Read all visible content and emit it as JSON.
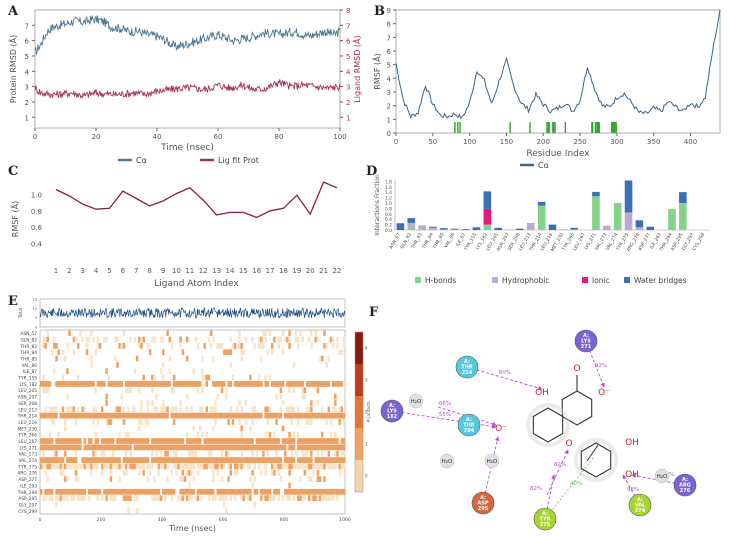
{
  "panels": {
    "a": "A",
    "b": "B",
    "c": "C",
    "d": "D",
    "e": "E",
    "f": "F"
  },
  "colors": {
    "protein": "#4f7692",
    "ligand": "#a3345d",
    "rmsf": "#3f6480",
    "rmsf_c": "#8b1e3f",
    "hbond": "#84d38a",
    "hydrophobic": "#bcaad6",
    "ionic": "#e8177d",
    "water": "#3b6fb6",
    "contact_bar": "#1f4e85",
    "heat_low": "#f9e3c9",
    "heat_mid": "#f0a060",
    "heat_high": "#8b1a10"
  },
  "chart_data": [
    {
      "type": "line",
      "panel": "A",
      "xlabel": "Time (nsec)",
      "ylabel": "Protein RMSD (Å)",
      "ylabel2": "Ligand RMSD (Å)",
      "xlim": [
        0,
        100
      ],
      "ylim": [
        0.3,
        8
      ],
      "y2lim": [
        0.3,
        8
      ],
      "xticks": [
        "0",
        "20",
        "40",
        "60",
        "80",
        "100"
      ],
      "yticks": [
        "1",
        "2",
        "3",
        "4",
        "5",
        "6",
        "7"
      ],
      "y2ticks": [
        "1",
        "2",
        "3",
        "4",
        "5",
        "6",
        "7",
        "8"
      ],
      "legend": [
        "Cα",
        "Lig fit Prot"
      ],
      "series": [
        {
          "name": "Cα",
          "x": [
            0,
            2,
            4,
            6,
            8,
            10,
            13,
            16,
            19,
            22,
            25,
            28,
            31,
            34,
            37,
            40,
            43,
            46,
            50,
            55,
            60,
            65,
            70,
            75,
            80,
            85,
            90,
            95,
            98,
            100
          ],
          "values": [
            5.2,
            5.8,
            6.6,
            6.9,
            7.0,
            7.1,
            7.3,
            7.2,
            7.4,
            7.3,
            6.9,
            6.8,
            6.6,
            6.6,
            6.4,
            6.3,
            6.0,
            5.6,
            5.8,
            6.1,
            6.4,
            6.0,
            6.2,
            6.5,
            6.4,
            6.6,
            6.3,
            6.6,
            6.4,
            6.6
          ]
        },
        {
          "name": "Lig fit Prot",
          "x": [
            0,
            2,
            5,
            8,
            12,
            16,
            20,
            24,
            28,
            32,
            36,
            40,
            44,
            48,
            52,
            56,
            60,
            64,
            68,
            72,
            76,
            80,
            84,
            88,
            92,
            96,
            100
          ],
          "values": [
            2.9,
            2.6,
            2.5,
            2.5,
            2.6,
            2.4,
            2.6,
            2.5,
            2.5,
            2.6,
            2.5,
            2.7,
            2.8,
            2.9,
            2.9,
            2.8,
            3.1,
            2.9,
            3.1,
            2.8,
            2.9,
            3.3,
            3.0,
            3.1,
            3.0,
            2.9,
            3.0
          ]
        }
      ]
    },
    {
      "type": "line",
      "panel": "B",
      "xlabel": "Residue Index",
      "ylabel": "RMSF (Å)",
      "xlim": [
        0,
        440
      ],
      "ylim": [
        0,
        9
      ],
      "xticks": [
        "0",
        "50",
        "100",
        "150",
        "200",
        "250",
        "300",
        "350",
        "400"
      ],
      "yticks": [
        "0",
        "1",
        "2",
        "3",
        "4",
        "5",
        "6",
        "7",
        "8",
        "9"
      ],
      "legend": [
        "Cα"
      ],
      "x": [
        0,
        10,
        20,
        30,
        40,
        50,
        60,
        70,
        80,
        90,
        100,
        110,
        120,
        130,
        140,
        150,
        160,
        170,
        180,
        190,
        200,
        210,
        220,
        230,
        240,
        250,
        260,
        270,
        280,
        290,
        300,
        310,
        320,
        330,
        340,
        350,
        360,
        370,
        380,
        390,
        400,
        410,
        420,
        430,
        440
      ],
      "values": [
        5.1,
        2.4,
        1.2,
        1.5,
        3.5,
        2.1,
        1.3,
        1.2,
        1.4,
        1.1,
        2.2,
        4.6,
        3.8,
        2.1,
        3.8,
        5.3,
        3.4,
        2.2,
        1.7,
        2.8,
        2.1,
        1.6,
        1.8,
        2.2,
        1.6,
        2.4,
        4.9,
        3.2,
        2.0,
        1.9,
        2.6,
        2.9,
        2.2,
        1.5,
        1.4,
        1.8,
        1.6,
        2.3,
        1.9,
        1.6,
        2.2,
        1.9,
        2.6,
        6.0,
        9.0
      ],
      "contact_residues": [
        80,
        84,
        87,
        155,
        182,
        205,
        207,
        208,
        213,
        214,
        216,
        230,
        266,
        267,
        271,
        273,
        274,
        275,
        276,
        293,
        294,
        295,
        297,
        299
      ]
    },
    {
      "type": "line",
      "panel": "C",
      "xlabel": "Ligand Atom Index",
      "ylabel": "RMSF (Å)",
      "ylim": [
        0.2,
        1.2
      ],
      "yticks": [
        "0.4",
        "0.6",
        "0.8",
        "1.0"
      ],
      "categories": [
        "1",
        "2",
        "3",
        "4",
        "5",
        "6",
        "7",
        "8",
        "9",
        "10",
        "11",
        "12",
        "13",
        "14",
        "15",
        "16",
        "17",
        "18",
        "19",
        "20",
        "21",
        "22"
      ],
      "values": [
        1.06,
        0.98,
        0.88,
        0.82,
        0.83,
        1.04,
        0.95,
        0.86,
        0.92,
        1.01,
        1.08,
        0.93,
        0.75,
        0.78,
        0.78,
        0.72,
        0.8,
        0.83,
        0.99,
        0.76,
        1.15,
        1.08
      ]
    },
    {
      "type": "bar",
      "panel": "D",
      "ylabel": "Interactions Fraction",
      "ylim": [
        0,
        1.85
      ],
      "yticks": [
        "0.0",
        "0.2",
        "0.4",
        "0.6",
        "0.8",
        "1.0",
        "1.2",
        "1.4",
        "1.6",
        "1.8"
      ],
      "categories": [
        "ASN_57",
        "GLN_82",
        "THR_83",
        "THR_84",
        "THR_85",
        "VAL_86",
        "ILE_87",
        "TYR_155",
        "LYS_182",
        "LEU_205",
        "ASN_207",
        "SER_208",
        "LEU_213",
        "THR_214",
        "LEU_216",
        "MET_230",
        "TYR_266",
        "LEU_267",
        "LYS_271",
        "VAL_273",
        "VAL_274",
        "TYR_275",
        "ARG_276",
        "ASP_277",
        "ILE_293",
        "THR_294",
        "ASP_295",
        "GLY_297",
        "CYS_299"
      ],
      "series": [
        {
          "name": "H-bonds",
          "values": [
            0,
            0.08,
            0.02,
            0,
            0,
            0,
            0,
            0,
            0.15,
            0,
            0,
            0,
            0,
            0.9,
            0,
            0,
            0,
            0,
            1.25,
            0,
            1.0,
            0,
            0,
            0,
            0,
            0.78,
            1.0,
            0,
            0
          ]
        },
        {
          "name": "Hydrophobic",
          "values": [
            0,
            0.18,
            0.15,
            0.08,
            0.02,
            0.02,
            0,
            0,
            0.05,
            0,
            0.02,
            0,
            0.26,
            0,
            0,
            0,
            0.02,
            0,
            0,
            0.16,
            0,
            0.65,
            0.1,
            0,
            0,
            0,
            0,
            0,
            0
          ]
        },
        {
          "name": "Ionic",
          "values": [
            0,
            0,
            0,
            0,
            0,
            0,
            0,
            0,
            0.58,
            0,
            0,
            0,
            0,
            0,
            0,
            0,
            0,
            0,
            0,
            0,
            0,
            0,
            0,
            0,
            0,
            0,
            0,
            0,
            0
          ]
        },
        {
          "name": "Water bridges",
          "values": [
            0.25,
            0.18,
            0,
            0.04,
            0.05,
            0.03,
            0.03,
            0.1,
            0.65,
            0.08,
            0,
            0.05,
            0,
            0.14,
            0.2,
            0.01,
            0.06,
            0,
            0.16,
            0,
            0,
            1.18,
            0.26,
            0.12,
            0,
            0,
            0.4,
            0,
            0
          ]
        }
      ],
      "legend": [
        "H-bonds",
        "Hydrophobic",
        "Ionic",
        "Water bridges"
      ]
    },
    {
      "type": "heatmap",
      "panel": "E",
      "xlabel": "Time (nsec)",
      "top_label": "Total",
      "top_ticks": [
        "0",
        "5",
        "10",
        "15"
      ],
      "xticks": [
        "0",
        "200",
        "400",
        "600",
        "800",
        "1000"
      ],
      "colorbar_ticks": [
        "0",
        "1",
        "2",
        "3",
        "4"
      ],
      "colorbar_label": "#Contacts",
      "rows": [
        "ASN_57",
        "GLN_82",
        "THR_83",
        "THR_84",
        "THR_85",
        "VAL_86",
        "ILE_87",
        "TYR_155",
        "LYS_182",
        "LEU_205",
        "ASN_207",
        "SER_208",
        "LEU_213",
        "THR_214",
        "LEU_216",
        "MET_230",
        "TYR_266",
        "LEU_267",
        "LYS_271",
        "VAL_273",
        "VAL_274",
        "TYR_275",
        "ARG_276",
        "ASP_277",
        "ILE_293",
        "THR_294",
        "ASP_295",
        "GLY_297",
        "CYS_299"
      ],
      "row_density": [
        0.15,
        0.35,
        0.3,
        0.12,
        0.08,
        0.05,
        0.04,
        0.12,
        0.9,
        0.12,
        0.06,
        0.08,
        0.45,
        0.95,
        0.25,
        0.03,
        0.1,
        0.92,
        0.95,
        0.4,
        0.92,
        0.85,
        0.25,
        0.15,
        0.03,
        0.9,
        0.6,
        0.02,
        0.02
      ]
    }
  ],
  "panel_f": {
    "residues": [
      {
        "name": "A:\nTHR\n214"
      },
      {
        "name": "A:\nLYS\n271"
      },
      {
        "name": "A:\nLYS\n182"
      },
      {
        "name": "A:\nTHR\n294"
      },
      {
        "name": "A:\nASP\n295"
      },
      {
        "name": "A:\nTYR\n275"
      },
      {
        "name": "A:\nVAL\n274"
      },
      {
        "name": "A:\nARG\n276"
      }
    ],
    "labels": [
      "80%",
      "92%",
      "55%",
      "66%",
      "98%",
      "97%",
      "37%",
      "82%",
      "82%",
      "80%",
      "98%",
      "73%",
      "40%"
    ],
    "water": "H₂O",
    "atoms": [
      "OH",
      "O",
      "O⁻",
      "O",
      "OH",
      "OH",
      "O⁻"
    ]
  }
}
